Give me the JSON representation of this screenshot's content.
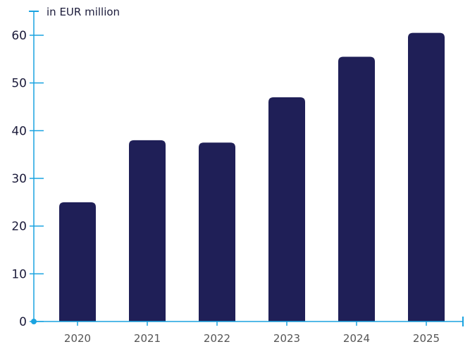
{
  "chart_data": {
    "type": "bar",
    "unit_label": "in EUR million",
    "categories": [
      "2020",
      "2021",
      "2022",
      "2023",
      "2024",
      "2025"
    ],
    "values": [
      25,
      38,
      37.5,
      47,
      55.5,
      60.5
    ],
    "ylim": [
      0,
      60
    ],
    "yticks": [
      0,
      10,
      20,
      30,
      40,
      50,
      60
    ],
    "grid": false,
    "colors": {
      "bar": "#1f1f57",
      "axis": "#1aa3e0",
      "text": "#1b1b3a",
      "tick_label": "#555555"
    }
  }
}
